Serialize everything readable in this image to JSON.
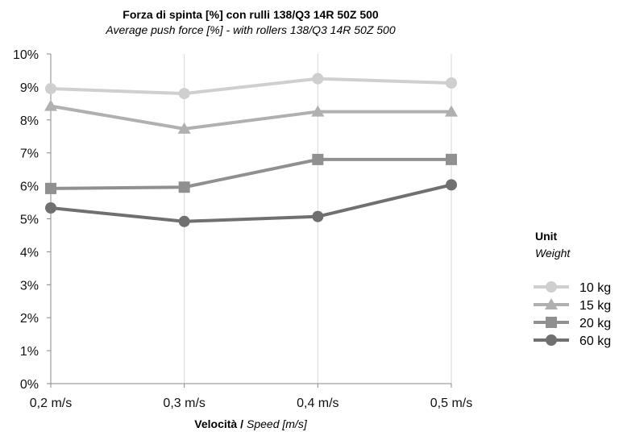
{
  "chart_data": {
    "type": "line",
    "title": "Forza di spinta  [%] con rulli 138/Q3 14R 50Z 500",
    "subtitle": "Average push force [%] - with rollers 138/Q3 14R 50Z 500",
    "xlabel_bold": "Velocità /",
    "xlabel_italic": "Speed [m/s]",
    "ylabel": "",
    "categories": [
      "0,2 m/s",
      "0,3 m/s",
      "0,4 m/s",
      "0,5 m/s"
    ],
    "y_ticks": [
      "0%",
      "1%",
      "2%",
      "3%",
      "4%",
      "5%",
      "6%",
      "7%",
      "8%",
      "9%",
      "10%"
    ],
    "ylim": [
      0,
      10
    ],
    "grid": "vertical",
    "legend_position": "right",
    "legend_title": "Unit",
    "legend_subtitle": "Weight",
    "series": [
      {
        "name": "10 kg",
        "marker": "circle",
        "color": "#cfcfcf",
        "values": [
          8.95,
          8.8,
          9.25,
          9.12
        ]
      },
      {
        "name": "15 kg",
        "marker": "triangle",
        "color": "#b0b0b0",
        "values": [
          8.42,
          7.73,
          8.25,
          8.25
        ]
      },
      {
        "name": "20 kg",
        "marker": "square",
        "color": "#909090",
        "values": [
          5.92,
          5.96,
          6.8,
          6.8
        ]
      },
      {
        "name": "60 kg",
        "marker": "circle",
        "color": "#707070",
        "values": [
          5.33,
          4.92,
          5.07,
          6.03
        ]
      }
    ]
  }
}
